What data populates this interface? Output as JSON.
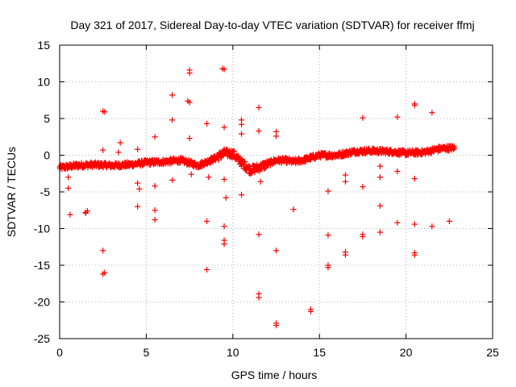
{
  "chart_data": {
    "type": "scatter",
    "title": "Day 321 of 2017, Sidereal Day-to-day VTEC variation (SDTVAR) for receiver ffmj",
    "xlabel": "GPS time / hours",
    "ylabel": "SDTVAR / TECUs",
    "xlim": [
      0,
      25
    ],
    "ylim": [
      -25,
      15
    ],
    "xticks": [
      "0",
      "5",
      "10",
      "15",
      "20",
      "25"
    ],
    "yticks": [
      "15",
      "10",
      "5",
      "0",
      "-5",
      "-10",
      "-15",
      "-20",
      "-25"
    ],
    "grid": true,
    "marker": "+",
    "color": "#ff0000",
    "baseline": [
      [
        0,
        -1.7
      ],
      [
        1,
        -1.4
      ],
      [
        2,
        -1.3
      ],
      [
        3,
        -1.4
      ],
      [
        4,
        -1.3
      ],
      [
        5,
        -1.0
      ],
      [
        6,
        -0.9
      ],
      [
        7,
        -0.7
      ],
      [
        8,
        -1.4
      ],
      [
        9,
        -0.4
      ],
      [
        9.5,
        0.3
      ],
      [
        10,
        0.2
      ],
      [
        10.5,
        -1.0
      ],
      [
        11,
        -2.0
      ],
      [
        11.5,
        -1.7
      ],
      [
        12,
        -1.2
      ],
      [
        12.5,
        -0.7
      ],
      [
        13,
        -0.7
      ],
      [
        13.5,
        -0.9
      ],
      [
        14,
        -0.7
      ],
      [
        15,
        0.0
      ],
      [
        16,
        0.0
      ],
      [
        17,
        0.5
      ],
      [
        18,
        0.6
      ],
      [
        19,
        0.5
      ],
      [
        20,
        0.3
      ],
      [
        21,
        0.4
      ],
      [
        22,
        0.9
      ],
      [
        22.8,
        1.0
      ]
    ],
    "outliers": [
      [
        0.5,
        -3.0
      ],
      [
        0.5,
        -4.5
      ],
      [
        0.6,
        -8.1
      ],
      [
        1.5,
        -7.8
      ],
      [
        1.6,
        -7.6
      ],
      [
        1.5,
        -7.9
      ],
      [
        2.5,
        6.0
      ],
      [
        2.6,
        5.9
      ],
      [
        2.5,
        0.7
      ],
      [
        2.5,
        -13.0
      ],
      [
        2.6,
        -16.0
      ],
      [
        2.5,
        -16.2
      ],
      [
        3.5,
        1.7
      ],
      [
        3.4,
        0.4
      ],
      [
        4.5,
        0.8
      ],
      [
        4.5,
        -3.8
      ],
      [
        4.6,
        -4.6
      ],
      [
        4.5,
        -7.0
      ],
      [
        5.5,
        2.5
      ],
      [
        5.5,
        -4.2
      ],
      [
        5.5,
        -7.5
      ],
      [
        5.5,
        -8.8
      ],
      [
        6.5,
        8.2
      ],
      [
        6.5,
        4.8
      ],
      [
        6.5,
        -3.4
      ],
      [
        7.5,
        11.6
      ],
      [
        7.5,
        11.2
      ],
      [
        7.5,
        7.2
      ],
      [
        7.4,
        7.4
      ],
      [
        7.5,
        2.3
      ],
      [
        7.6,
        -2.6
      ],
      [
        8.5,
        4.3
      ],
      [
        8.5,
        -9.0
      ],
      [
        8.5,
        -15.6
      ],
      [
        8.6,
        -3.0
      ],
      [
        9.5,
        11.7
      ],
      [
        9.4,
        11.8
      ],
      [
        9.5,
        3.8
      ],
      [
        9.5,
        -3.3
      ],
      [
        9.6,
        -5.8
      ],
      [
        9.5,
        -9.7
      ],
      [
        9.5,
        -11.6
      ],
      [
        9.5,
        -12.1
      ],
      [
        10.5,
        4.8
      ],
      [
        10.5,
        4.2
      ],
      [
        10.5,
        2.9
      ],
      [
        10.5,
        -5.4
      ],
      [
        11.5,
        6.5
      ],
      [
        11.5,
        3.3
      ],
      [
        11.6,
        -3.6
      ],
      [
        11.5,
        -10.8
      ],
      [
        11.5,
        -18.9
      ],
      [
        11.5,
        -19.4
      ],
      [
        12.5,
        3.2
      ],
      [
        12.5,
        2.6
      ],
      [
        12.5,
        -13.0
      ],
      [
        12.5,
        -22.9
      ],
      [
        12.5,
        -23.2
      ],
      [
        13.5,
        -7.4
      ],
      [
        14.5,
        -21.0
      ],
      [
        14.5,
        -21.3
      ],
      [
        15.5,
        -4.9
      ],
      [
        15.5,
        -10.9
      ],
      [
        15.5,
        -15.0
      ],
      [
        15.5,
        -15.3
      ],
      [
        16.5,
        -2.7
      ],
      [
        16.5,
        -3.6
      ],
      [
        16.5,
        -13.2
      ],
      [
        16.5,
        -13.6
      ],
      [
        17.5,
        5.1
      ],
      [
        17.5,
        -4.3
      ],
      [
        17.5,
        -10.8
      ],
      [
        17.5,
        -11.1
      ],
      [
        18.5,
        -1.5
      ],
      [
        18.5,
        -3.0
      ],
      [
        18.5,
        -6.9
      ],
      [
        18.5,
        -10.5
      ],
      [
        19.5,
        5.2
      ],
      [
        19.5,
        -2.2
      ],
      [
        19.5,
        -9.2
      ],
      [
        20.5,
        7.0
      ],
      [
        20.5,
        6.8
      ],
      [
        20.5,
        -3.2
      ],
      [
        20.5,
        -9.4
      ],
      [
        20.5,
        -13.3
      ],
      [
        20.5,
        -13.6
      ],
      [
        21.5,
        5.8
      ],
      [
        21.5,
        -9.7
      ],
      [
        22.5,
        -9.0
      ]
    ]
  }
}
